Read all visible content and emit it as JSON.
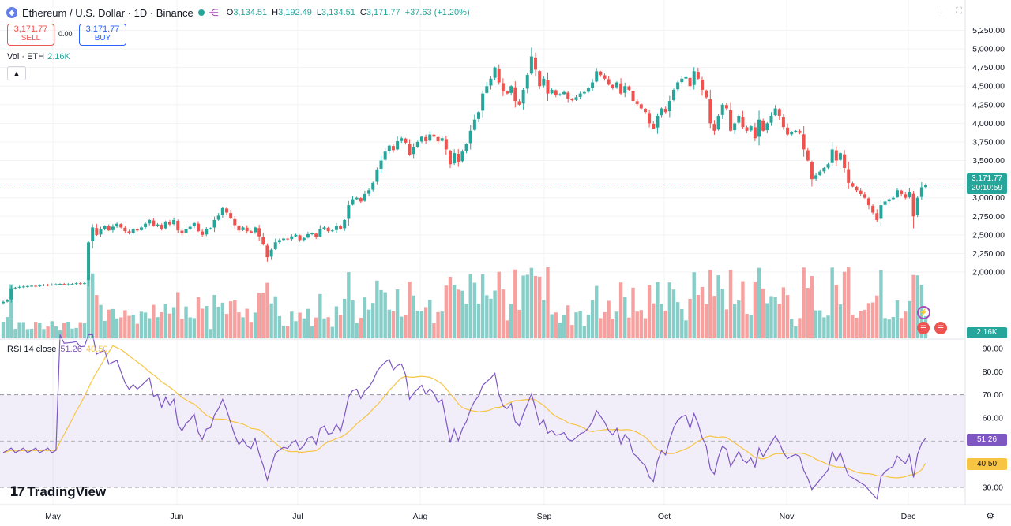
{
  "header": {
    "symbol_title": "Ethereum / U.S. Dollar · 1D · Binance",
    "ohlc": [
      {
        "label": "O",
        "value": "3,134.51"
      },
      {
        "label": "H",
        "value": "3,192.49"
      },
      {
        "label": "L",
        "value": "3,134.51"
      },
      {
        "label": "C",
        "value": "3,171.77"
      }
    ],
    "change": "+37.63 (+1.20%)"
  },
  "trade": {
    "sell_price": "3,171.77",
    "sell_label": "SELL",
    "spread": "0.00",
    "buy_price": "3,171.77",
    "buy_label": "BUY"
  },
  "volume_legend": {
    "name": "Vol · ETH",
    "value": "2.16K"
  },
  "rsi_legend": {
    "name": "RSI 14 close",
    "rsi": "51.26",
    "ma": "40.50"
  },
  "branding": {
    "name": "TradingView"
  },
  "tags": {
    "last_price": "3,171.77",
    "countdown": "20:10:59",
    "volume": "2.16K",
    "rsi": "51.26",
    "rsi_ma": "40.50"
  },
  "colors": {
    "up": "#26a69a",
    "down": "#ef5350",
    "rsi": "#7e57c2",
    "rsi_ma": "#f7c543",
    "band": "#7e57c2"
  },
  "chart_data": [
    {
      "type": "candlestick",
      "title": "Ethereum / U.S. Dollar · 1D · Binance",
      "y_ticks": [
        2000,
        2250,
        2500,
        2750,
        3000,
        3250,
        3500,
        3750,
        4000,
        4250,
        4500,
        4750,
        5000,
        5250
      ],
      "y_tick_labels": [
        "2,000.00",
        "2,250.00",
        "2,500.00",
        "2,750.00",
        "3,000.00",
        "3,250.00",
        "3,500.00",
        "3,750.00",
        "4,000.00",
        "4,250.00",
        "4,500.00",
        "4,750.00",
        "5,000.00",
        "5,250.00"
      ],
      "x_labels": [
        "May",
        "Jun",
        "Jul",
        "Aug",
        "Sep",
        "Oct",
        "Nov",
        "Dec"
      ],
      "last_close": 3171.77,
      "series": [
        {
          "name": "Close",
          "closes": [
            1600,
            1620,
            1780,
            1790,
            1800,
            1805,
            1810,
            1815,
            1810,
            1820,
            1830,
            1825,
            1830,
            1835,
            1840,
            1830,
            1835,
            1840,
            1850,
            1845,
            1850,
            2400,
            2600,
            2500,
            2580,
            2620,
            2560,
            2610,
            2650,
            2600,
            2550,
            2520,
            2580,
            2560,
            2600,
            2650,
            2700,
            2620,
            2640,
            2580,
            2680,
            2640,
            2700,
            2560,
            2520,
            2580,
            2610,
            2660,
            2550,
            2500,
            2580,
            2590,
            2700,
            2760,
            2860,
            2800,
            2720,
            2630,
            2560,
            2600,
            2550,
            2530,
            2600,
            2480,
            2370,
            2200,
            2300,
            2400,
            2430,
            2450,
            2440,
            2480,
            2500,
            2430,
            2460,
            2510,
            2520,
            2470,
            2580,
            2600,
            2550,
            2560,
            2620,
            2580,
            2700,
            2900,
            2980,
            3000,
            2950,
            3050,
            3100,
            3200,
            3380,
            3500,
            3620,
            3700,
            3640,
            3760,
            3800,
            3740,
            3580,
            3680,
            3750,
            3820,
            3760,
            3850,
            3820,
            3760,
            3800,
            3650,
            3450,
            3600,
            3480,
            3620,
            3720,
            3900,
            4050,
            4150,
            4400,
            4500,
            4600,
            4750,
            4550,
            4430,
            4400,
            4500,
            4300,
            4250,
            4450,
            4650,
            4900,
            4720,
            4500,
            4600,
            4400,
            4450,
            4380,
            4390,
            4420,
            4330,
            4310,
            4350,
            4400,
            4420,
            4470,
            4550,
            4700,
            4650,
            4600,
            4520,
            4480,
            4550,
            4400,
            4500,
            4450,
            4300,
            4260,
            4200,
            4150,
            4000,
            3930,
            4100,
            4200,
            4150,
            4300,
            4450,
            4550,
            4600,
            4620,
            4500,
            4700,
            4600,
            4450,
            4350,
            4000,
            3900,
            4100,
            4250,
            4200,
            3900,
            4000,
            4100,
            3950,
            3900,
            3960,
            3800,
            4050,
            3900,
            4000,
            4100,
            4200,
            4100,
            3950,
            3850,
            3880,
            3900,
            3870,
            3650,
            3500,
            3250,
            3300,
            3350,
            3400,
            3450,
            3650,
            3500,
            3600,
            3400,
            3200,
            3150,
            3100,
            3050,
            3000,
            2900,
            2800,
            2700,
            2900,
            2950,
            2980,
            3000,
            3100,
            3050,
            3000,
            3080,
            2750,
            3000,
            3140,
            3171.77
          ]
        }
      ]
    },
    {
      "type": "bar",
      "title": "Vol · ETH",
      "last_value": "2.16K"
    },
    {
      "type": "line",
      "title": "RSI 14 close",
      "y_ticks": [
        30,
        40,
        50,
        60,
        70,
        80,
        90
      ],
      "y_tick_labels": [
        "30.00",
        "40.00",
        "50.00",
        "60.00",
        "70.00",
        "80.00",
        "90.00"
      ],
      "bands": {
        "upper": 70,
        "middle": 50,
        "lower": 30
      },
      "series": [
        {
          "name": "RSI",
          "last_value": 51.26
        },
        {
          "name": "RSI-based MA",
          "last_value": 40.5
        }
      ]
    }
  ]
}
